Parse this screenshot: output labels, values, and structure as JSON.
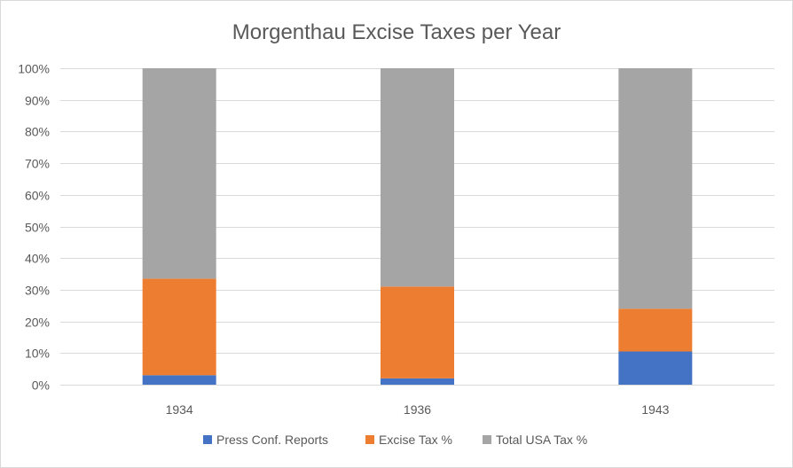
{
  "chart_data": {
    "type": "bar",
    "stacked": true,
    "title": "Morgenthau Excise Taxes per Year",
    "categories": [
      "1934",
      "1936",
      "1943"
    ],
    "series": [
      {
        "name": "Press Conf. Reports",
        "color": "#4472c4",
        "values": [
          3,
          2,
          10.5
        ]
      },
      {
        "name": "Excise Tax %",
        "color": "#ed7d31",
        "values": [
          30.5,
          29,
          13.5
        ]
      },
      {
        "name": "Total USA Tax %",
        "color": "#a5a5a5",
        "values": [
          66.5,
          69,
          76
        ]
      }
    ],
    "ylim": [
      0,
      100
    ],
    "yticks": [
      "0%",
      "10%",
      "20%",
      "30%",
      "40%",
      "50%",
      "60%",
      "70%",
      "80%",
      "90%",
      "100%"
    ],
    "grid": true,
    "legend_position": "bottom"
  }
}
